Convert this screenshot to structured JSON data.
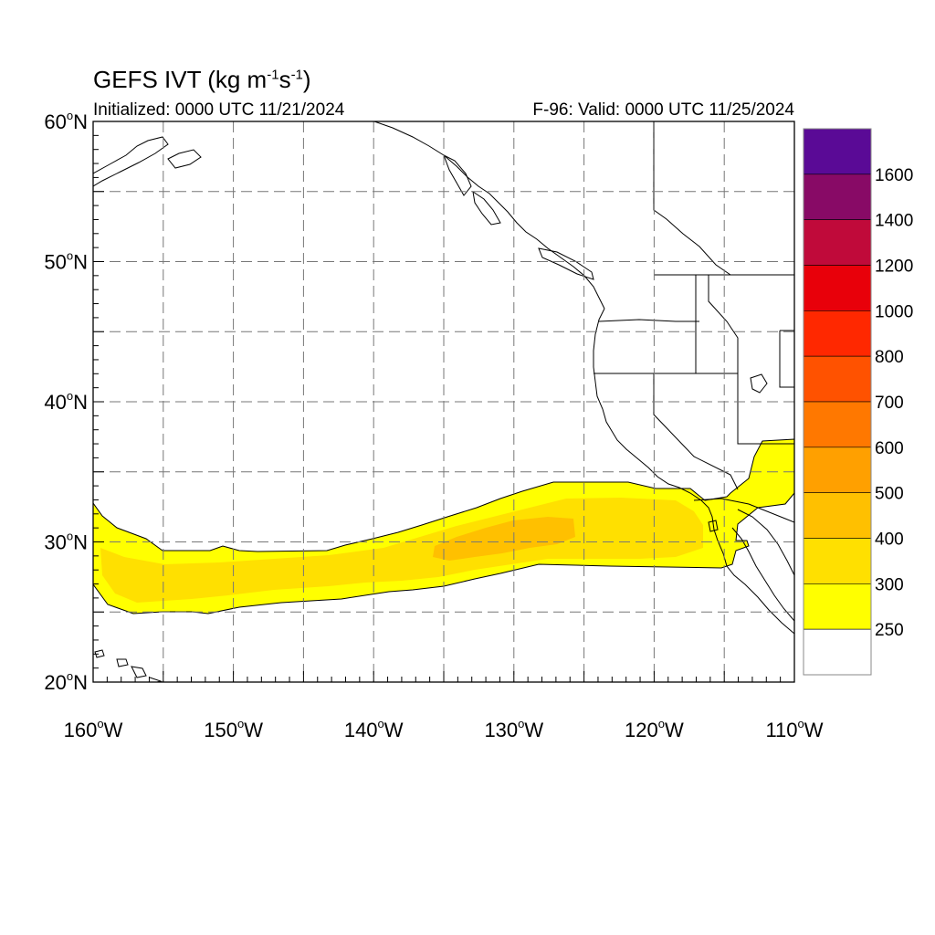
{
  "title": {
    "main": "GEFS IVT (kg m",
    "exp1": "-1",
    "mid": "s",
    "exp2": "-1",
    "close": ")"
  },
  "subtitle": {
    "initialized": "Initialized: 0000 UTC 11/21/2024",
    "valid": "F-96: Valid: 0000 UTC 11/25/2024"
  },
  "axes": {
    "lat_ticks": [
      {
        "value": 60,
        "num": "60",
        "hemi": "N"
      },
      {
        "value": 50,
        "num": "50",
        "hemi": "N"
      },
      {
        "value": 40,
        "num": "40",
        "hemi": "N"
      },
      {
        "value": 30,
        "num": "30",
        "hemi": "N"
      },
      {
        "value": 20,
        "num": "20",
        "hemi": "N"
      }
    ],
    "lon_ticks": [
      {
        "value": -160,
        "num": "160",
        "hemi": "W"
      },
      {
        "value": -150,
        "num": "150",
        "hemi": "W"
      },
      {
        "value": -140,
        "num": "140",
        "hemi": "W"
      },
      {
        "value": -130,
        "num": "130",
        "hemi": "W"
      },
      {
        "value": -120,
        "num": "120",
        "hemi": "W"
      },
      {
        "value": -110,
        "num": "110",
        "hemi": "W"
      }
    ],
    "lon_range": [
      -160,
      -110
    ],
    "lat_range": [
      20,
      60
    ],
    "grid": true
  },
  "colorbar": {
    "labels": [
      "1600",
      "1400",
      "1200",
      "1000",
      "800",
      "700",
      "600",
      "500",
      "400",
      "300",
      "250"
    ],
    "colors": [
      "#5a0a96",
      "#880a66",
      "#c00a3a",
      "#e8000a",
      "#ff2800",
      "#ff5200",
      "#ff7800",
      "#ffa000",
      "#ffc000",
      "#ffe000",
      "#ffff00",
      "#ffffff"
    ]
  },
  "plume": {
    "levels": [
      {
        "min": 250,
        "color": "#ffff00"
      },
      {
        "min": 300,
        "color": "#ffe000"
      },
      {
        "min": 400,
        "color": "#ffc000"
      }
    ]
  }
}
